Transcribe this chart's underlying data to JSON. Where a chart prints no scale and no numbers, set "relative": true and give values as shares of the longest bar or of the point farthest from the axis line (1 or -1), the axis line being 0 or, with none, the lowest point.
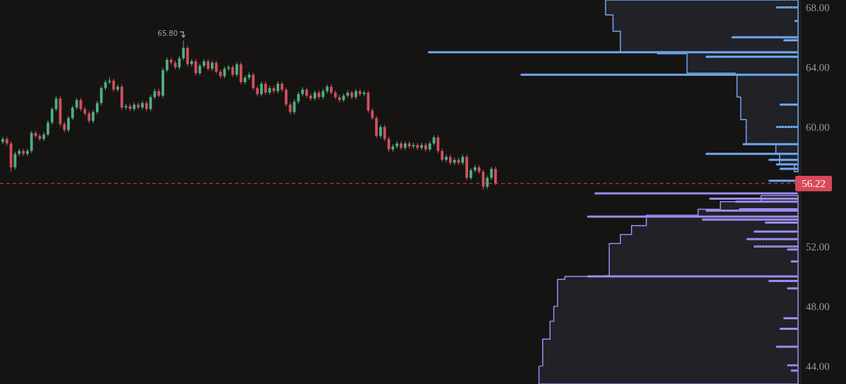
{
  "chart_data": [
    {
      "type": "candlestick",
      "categories": [
        null,
        null,
        null,
        null,
        null,
        null,
        null,
        null,
        null,
        null,
        null,
        null,
        null,
        null,
        null,
        null,
        null,
        null,
        null,
        null,
        null,
        null,
        null,
        null,
        null,
        null,
        null,
        null,
        null,
        null,
        null,
        null,
        null,
        null,
        null,
        null,
        null,
        null,
        null,
        null,
        null,
        null,
        null,
        null,
        null,
        null,
        null,
        null,
        null,
        null,
        null,
        null,
        null,
        null,
        null,
        null,
        null,
        null,
        null,
        null,
        null,
        null,
        null,
        null,
        null,
        null,
        null,
        null,
        null,
        null,
        null,
        null,
        null,
        null,
        null,
        null,
        null,
        null,
        null,
        null,
        null,
        null,
        null,
        null,
        null,
        null,
        null,
        null,
        null,
        null,
        null,
        null,
        null,
        null,
        null,
        null,
        null,
        null,
        null,
        null,
        null,
        null,
        null,
        null,
        null,
        null,
        null,
        null,
        null,
        null,
        null,
        null,
        null,
        null,
        null,
        null,
        null,
        null,
        null,
        null,
        null,
        null,
        null,
        null,
        null,
        null,
        null,
        null,
        null,
        null,
        null,
        null,
        null,
        null,
        null,
        null,
        null,
        null,
        null,
        null,
        null,
        null,
        null,
        null,
        null,
        null,
        null,
        null,
        null,
        null,
        null,
        null,
        null,
        null,
        null,
        null,
        null,
        null,
        null,
        null,
        null,
        null,
        null,
        null,
        null,
        null,
        null,
        null,
        null,
        null,
        null,
        null,
        null,
        null,
        null,
        null,
        null,
        null,
        null,
        null,
        null,
        null,
        null,
        null,
        null,
        null,
        null,
        null,
        null,
        null,
        null,
        null,
        null,
        null
      ],
      "ohlc": [
        [
          59.0,
          59.35,
          58.85,
          59.2
        ],
        [
          59.2,
          59.35,
          58.75,
          58.9
        ],
        [
          58.9,
          59.05,
          57.0,
          57.3
        ],
        [
          57.3,
          58.35,
          57.15,
          58.2
        ],
        [
          58.2,
          58.55,
          58.05,
          58.4
        ],
        [
          58.4,
          58.55,
          58.05,
          58.2
        ],
        [
          58.2,
          58.55,
          58.05,
          58.4
        ],
        [
          58.4,
          59.75,
          58.25,
          59.6
        ],
        [
          59.6,
          59.75,
          59.25,
          59.4
        ],
        [
          59.4,
          59.55,
          59.05,
          59.2
        ],
        [
          59.2,
          59.65,
          59.05,
          59.5
        ],
        [
          59.5,
          60.45,
          59.35,
          60.3
        ],
        [
          60.3,
          61.35,
          60.15,
          61.2
        ],
        [
          61.2,
          62.05,
          61.05,
          61.9
        ],
        [
          61.9,
          62.05,
          60.05,
          60.2
        ],
        [
          60.2,
          60.35,
          59.65,
          59.8
        ],
        [
          59.8,
          60.75,
          59.65,
          60.6
        ],
        [
          60.6,
          61.45,
          60.45,
          61.3
        ],
        [
          61.3,
          61.95,
          61.15,
          61.8
        ],
        [
          61.8,
          61.95,
          61.05,
          61.2
        ],
        [
          61.2,
          61.35,
          60.75,
          60.9
        ],
        [
          60.9,
          61.05,
          60.25,
          60.4
        ],
        [
          60.4,
          61.15,
          60.25,
          61.0
        ],
        [
          61.0,
          61.75,
          60.85,
          61.6
        ],
        [
          61.6,
          62.75,
          61.45,
          62.6
        ],
        [
          62.6,
          63.15,
          62.45,
          63.0
        ],
        [
          63.0,
          63.35,
          62.85,
          63.1
        ],
        [
          63.1,
          63.25,
          62.35,
          62.5
        ],
        [
          62.5,
          62.85,
          62.35,
          62.7
        ],
        [
          62.7,
          62.85,
          61.15,
          61.3
        ],
        [
          61.3,
          61.55,
          61.15,
          61.4
        ],
        [
          61.4,
          61.55,
          61.05,
          61.2
        ],
        [
          61.2,
          61.65,
          61.05,
          61.5
        ],
        [
          61.5,
          61.65,
          61.15,
          61.3
        ],
        [
          61.3,
          61.75,
          61.15,
          61.6
        ],
        [
          61.6,
          61.75,
          61.05,
          61.2
        ],
        [
          61.2,
          62.15,
          61.05,
          62.0
        ],
        [
          62.0,
          62.55,
          61.85,
          62.4
        ],
        [
          62.4,
          62.55,
          61.95,
          62.1
        ],
        [
          62.1,
          63.95,
          61.95,
          63.8
        ],
        [
          63.8,
          64.65,
          63.65,
          64.5
        ],
        [
          64.5,
          64.65,
          64.15,
          64.3
        ],
        [
          64.3,
          64.45,
          63.85,
          64.0
        ],
        [
          64.0,
          64.75,
          63.85,
          64.6
        ],
        [
          64.6,
          65.8,
          64.45,
          65.3
        ],
        [
          65.3,
          65.45,
          64.05,
          64.2
        ],
        [
          64.2,
          64.55,
          64.05,
          64.4
        ],
        [
          64.4,
          64.55,
          63.45,
          63.6
        ],
        [
          63.6,
          64.25,
          63.45,
          64.1
        ],
        [
          64.1,
          64.55,
          63.95,
          64.4
        ],
        [
          64.4,
          64.55,
          63.75,
          63.9
        ],
        [
          63.9,
          64.45,
          63.75,
          64.3
        ],
        [
          64.3,
          64.45,
          63.55,
          63.7
        ],
        [
          63.7,
          63.85,
          63.25,
          63.4
        ],
        [
          63.4,
          64.05,
          63.25,
          63.9
        ],
        [
          63.9,
          64.15,
          63.75,
          64.0
        ],
        [
          64.0,
          64.15,
          63.35,
          63.5
        ],
        [
          63.5,
          64.35,
          63.35,
          64.2
        ],
        [
          64.2,
          64.35,
          62.85,
          63.0
        ],
        [
          63.0,
          63.45,
          62.85,
          63.3
        ],
        [
          63.3,
          63.65,
          63.15,
          63.5
        ],
        [
          63.5,
          63.65,
          62.45,
          62.6
        ],
        [
          62.6,
          62.75,
          62.05,
          62.2
        ],
        [
          62.2,
          63.05,
          62.05,
          62.9
        ],
        [
          62.9,
          63.05,
          62.15,
          62.3
        ],
        [
          62.3,
          62.75,
          62.15,
          62.6
        ],
        [
          62.6,
          62.75,
          62.25,
          62.4
        ],
        [
          62.4,
          63.05,
          62.25,
          62.9
        ],
        [
          62.9,
          63.05,
          62.35,
          62.5
        ],
        [
          62.5,
          62.65,
          61.35,
          61.5
        ],
        [
          61.5,
          61.65,
          60.85,
          61.0
        ],
        [
          61.0,
          61.85,
          60.85,
          61.7
        ],
        [
          61.7,
          62.35,
          61.55,
          62.2
        ],
        [
          62.2,
          62.65,
          62.05,
          62.5
        ],
        [
          62.5,
          62.65,
          61.95,
          62.1
        ],
        [
          62.1,
          62.25,
          61.75,
          61.9
        ],
        [
          61.9,
          62.45,
          61.75,
          62.3
        ],
        [
          62.3,
          62.45,
          61.85,
          62.0
        ],
        [
          62.0,
          62.55,
          61.85,
          62.4
        ],
        [
          62.4,
          62.85,
          62.25,
          62.7
        ],
        [
          62.7,
          62.85,
          62.15,
          62.3
        ],
        [
          62.3,
          62.45,
          61.85,
          62.0
        ],
        [
          62.0,
          62.15,
          61.65,
          61.8
        ],
        [
          61.8,
          62.25,
          61.65,
          62.1
        ],
        [
          62.1,
          62.45,
          61.95,
          62.3
        ],
        [
          62.3,
          62.45,
          61.85,
          62.0
        ],
        [
          62.0,
          62.55,
          61.85,
          62.4
        ],
        [
          62.4,
          62.55,
          62.05,
          62.2
        ],
        [
          62.2,
          62.45,
          62.05,
          62.3
        ],
        [
          62.3,
          62.45,
          60.95,
          61.1
        ],
        [
          61.1,
          61.25,
          60.45,
          60.6
        ],
        [
          60.6,
          60.75,
          59.25,
          59.4
        ],
        [
          59.4,
          60.15,
          59.25,
          60.0
        ],
        [
          60.0,
          60.15,
          59.05,
          59.2
        ],
        [
          59.2,
          59.35,
          58.35,
          58.5
        ],
        [
          58.5,
          58.85,
          58.35,
          58.7
        ],
        [
          58.7,
          59.05,
          58.55,
          58.9
        ],
        [
          58.9,
          59.05,
          58.45,
          58.6
        ],
        [
          58.6,
          59.05,
          58.45,
          58.9
        ],
        [
          58.9,
          59.05,
          58.55,
          58.7
        ],
        [
          58.7,
          58.95,
          58.55,
          58.8
        ],
        [
          58.8,
          58.95,
          58.45,
          58.6
        ],
        [
          58.6,
          58.95,
          58.45,
          58.8
        ],
        [
          58.8,
          58.95,
          58.35,
          58.5
        ],
        [
          58.5,
          59.05,
          58.35,
          58.9
        ],
        [
          58.9,
          59.45,
          58.75,
          59.3
        ],
        [
          59.3,
          59.45,
          58.25,
          58.4
        ],
        [
          58.4,
          58.55,
          57.65,
          57.8
        ],
        [
          57.8,
          58.15,
          57.65,
          58.0
        ],
        [
          58.0,
          58.15,
          57.45,
          57.6
        ],
        [
          57.6,
          57.95,
          57.45,
          57.8
        ],
        [
          57.8,
          57.95,
          57.45,
          57.6
        ],
        [
          57.6,
          58.15,
          57.45,
          58.0
        ],
        [
          58.0,
          58.15,
          56.45,
          56.6
        ],
        [
          56.6,
          57.25,
          56.45,
          57.1
        ],
        [
          57.1,
          57.45,
          56.95,
          57.3
        ],
        [
          57.3,
          57.45,
          56.85,
          57.0
        ],
        [
          57.0,
          57.15,
          55.8,
          56.0
        ],
        [
          56.0,
          56.75,
          55.85,
          56.6
        ],
        [
          56.6,
          57.35,
          56.45,
          57.2
        ],
        [
          57.2,
          57.35,
          56.1,
          56.22
        ],
        null,
        null,
        null,
        null,
        null,
        null,
        null,
        null,
        null,
        null,
        null,
        null,
        null,
        null,
        null,
        null,
        null,
        null,
        null,
        null,
        null,
        null,
        null,
        null,
        null,
        null,
        null,
        null,
        null,
        null,
        null,
        null,
        null,
        null,
        null,
        null,
        null,
        null,
        null,
        null,
        null,
        null,
        null,
        null,
        null,
        null,
        null,
        null,
        null,
        null,
        null,
        null,
        null,
        null,
        null,
        null,
        null,
        null,
        null,
        null,
        null,
        null,
        null,
        null,
        null,
        null,
        null,
        null,
        null,
        null,
        null,
        null,
        null
      ],
      "ylim": [
        42.8,
        68.5
      ],
      "yticks": [
        {
          "value": 44,
          "label": "44.00"
        },
        {
          "value": 48,
          "label": "48.00"
        },
        {
          "value": 52,
          "label": "52.00"
        },
        {
          "value": 60,
          "label": "60.00"
        },
        {
          "value": 64,
          "label": "64.00"
        },
        {
          "value": 68,
          "label": "68.00"
        }
      ],
      "grid": "y",
      "ref_lines": [
        {
          "axis": "y",
          "value": 56.22,
          "label": "56.22",
          "color": "#d8485a",
          "line_style": "dashed"
        }
      ],
      "annotations": [
        "65.80"
      ]
    },
    {
      "type": "bar",
      "orientation": "horizontal",
      "relative": true,
      "tick_labels": false,
      "ylim": [
        42.8,
        68.5
      ],
      "series": [
        {
          "type": "area",
          "color": "#6fa8f0",
          "x": [
            57.0,
            57.5,
            58.2,
            58.85,
            59.0,
            60.5,
            62.0,
            63.5,
            63.6,
            64.6,
            64.9,
            65.0,
            65.9,
            66.4,
            67.5,
            68.5
          ],
          "values": [
            0.01,
            0.05,
            0.06,
            0.14,
            0.14,
            0.155,
            0.165,
            0.17,
            0.3,
            0.3,
            0.38,
            0.48,
            0.48,
            0.5,
            0.52,
            0.52
          ]
        },
        {
          "type": "area",
          "color": "#9b8cf0",
          "x": [
            55.4,
            55.0,
            54.5,
            54.1,
            53.4,
            52.8,
            52.2,
            50.05,
            50.0,
            49.8,
            48.0,
            47.0,
            45.8,
            44.0,
            42.8
          ],
          "values": [
            0.1,
            0.21,
            0.27,
            0.41,
            0.45,
            0.48,
            0.51,
            0.52,
            0.63,
            0.65,
            0.66,
            0.67,
            0.69,
            0.7,
            0.7
          ]
        },
        {
          "type": "bar",
          "color": "#6fa8f0",
          "x": [
            68.0,
            67.1,
            66.0,
            65.8,
            65.0,
            64.7,
            63.5,
            61.5,
            60.0,
            58.85,
            58.2,
            57.8,
            57.5,
            57.2,
            56.4
          ],
          "values": [
            0.06,
            0.01,
            0.18,
            0.04,
            1.0,
            0.25,
            0.75,
            0.05,
            0.06,
            0.15,
            0.25,
            0.08,
            0.06,
            0.05,
            0.08
          ]
        },
        {
          "type": "bar",
          "color": "#9b8cf0",
          "x": [
            55.55,
            55.2,
            55.0,
            54.5,
            54.4,
            54.0,
            53.8,
            53.6,
            53.0,
            52.5,
            52.0,
            51.8,
            51.0,
            50.0,
            49.7,
            49.2,
            47.2,
            46.5,
            45.3,
            44.05,
            43.7
          ],
          "values": [
            0.55,
            0.24,
            0.17,
            0.16,
            0.25,
            0.57,
            0.26,
            0.09,
            0.12,
            0.14,
            0.12,
            0.03,
            0.02,
            0.57,
            0.08,
            0.03,
            0.04,
            0.05,
            0.06,
            0.03,
            0.02
          ]
        }
      ]
    }
  ]
}
